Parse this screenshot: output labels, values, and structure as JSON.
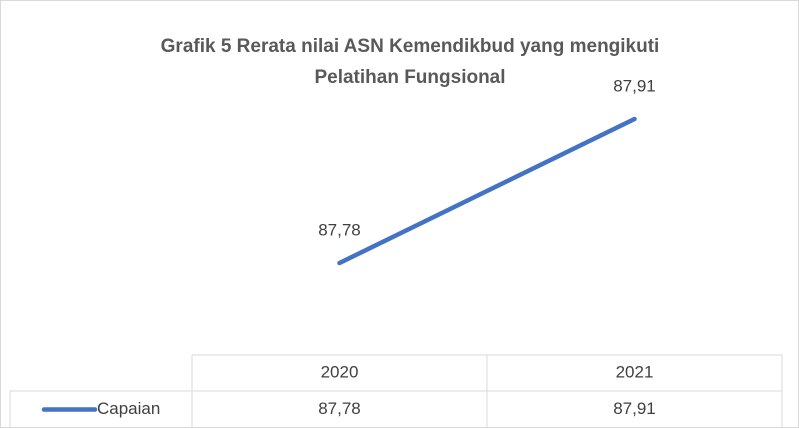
{
  "chart_data": {
    "type": "line",
    "title": "Grafik 5 Rerata nilai ASN Kemendikbud yang mengikuti Pelatihan Fungsional",
    "categories": [
      "2020",
      "2021"
    ],
    "series": [
      {
        "name": "Capaian",
        "color": "#4472c4",
        "values": [
          87.78,
          87.91
        ],
        "value_labels": [
          "87,78",
          "87,91"
        ]
      }
    ],
    "data_table": true
  }
}
